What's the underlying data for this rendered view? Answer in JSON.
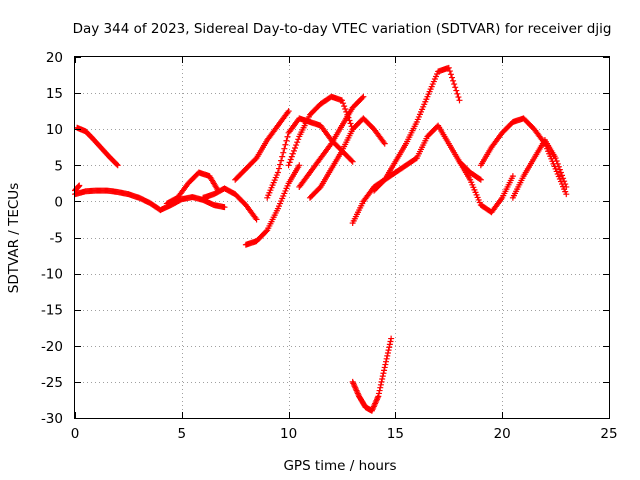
{
  "chart_data": {
    "type": "scatter",
    "title": "Day 344 of 2023, Sidereal Day-to-day VTEC variation (SDTVAR) for receiver djig",
    "xlabel": "GPS time / hours",
    "ylabel": "SDTVAR / TECUs",
    "xlim": [
      0,
      25
    ],
    "ylim": [
      -30,
      20
    ],
    "xticks": [
      0,
      5,
      10,
      15,
      20,
      25
    ],
    "yticks": [
      -30,
      -25,
      -20,
      -15,
      -10,
      -5,
      0,
      5,
      10,
      15,
      20
    ],
    "grid": true,
    "marker": "+",
    "color": "#ff0000",
    "tracks": [
      {
        "x": [
          0,
          0.5,
          1.0,
          1.5,
          2.0,
          2.5,
          3.0,
          3.5,
          4.0,
          4.5,
          5.0,
          5.5,
          6.0,
          6.5,
          7.0
        ],
        "y": [
          1.0,
          1.4,
          1.5,
          1.5,
          1.3,
          1.0,
          0.5,
          -0.2,
          -1.2,
          -0.5,
          0.3,
          0.6,
          0.2,
          -0.5,
          -0.8
        ]
      },
      {
        "x": [
          0.1,
          0.5,
          0.8,
          1.2,
          1.6,
          2.0
        ],
        "y": [
          10.2,
          9.7,
          8.8,
          7.5,
          6.2,
          5.0
        ]
      },
      {
        "x": [
          0,
          0.2
        ],
        "y": [
          1.5,
          2.2
        ]
      },
      {
        "x": [
          4.3,
          4.8,
          5.3,
          5.8,
          6.3,
          6.7
        ],
        "y": [
          -0.3,
          0.5,
          2.5,
          4.0,
          3.5,
          1.5
        ]
      },
      {
        "x": [
          6.0,
          6.5,
          7.0,
          7.5,
          8.0,
          8.5
        ],
        "y": [
          0.5,
          1.0,
          1.8,
          1.0,
          -0.5,
          -2.5
        ]
      },
      {
        "x": [
          8.0,
          8.5,
          9.0,
          9.5,
          10.0,
          10.5
        ],
        "y": [
          -6.0,
          -5.5,
          -4.0,
          -1.0,
          2.5,
          5.0
        ]
      },
      {
        "x": [
          7.5,
          8.0,
          8.5,
          9.0,
          9.5,
          10.0
        ],
        "y": [
          3.0,
          4.5,
          6.0,
          8.5,
          10.5,
          12.5
        ]
      },
      {
        "x": [
          9.0,
          9.5,
          10.0,
          10.5,
          11.0,
          11.5,
          12.0,
          12.5,
          13.0
        ],
        "y": [
          0.5,
          4.0,
          9.5,
          11.5,
          11.0,
          10.5,
          8.5,
          7.0,
          5.5
        ]
      },
      {
        "x": [
          10.0,
          10.5,
          11.0,
          11.5,
          12.0,
          12.5,
          13.0
        ],
        "y": [
          5.0,
          9.0,
          12.0,
          13.5,
          14.5,
          14.0,
          10.0
        ]
      },
      {
        "x": [
          10.5,
          11.0,
          11.5,
          12.0,
          12.5,
          13.0,
          13.5
        ],
        "y": [
          2.0,
          4.0,
          6.0,
          8.0,
          10.5,
          13.0,
          14.5
        ]
      },
      {
        "x": [
          11.0,
          11.5,
          12.0,
          12.5,
          13.0,
          13.5,
          14.0,
          14.5
        ],
        "y": [
          0.5,
          2.0,
          4.5,
          7.0,
          10.0,
          11.5,
          10.0,
          8.0
        ]
      },
      {
        "x": [
          13.0,
          13.5,
          14.0,
          14.5,
          15.0,
          15.5,
          16.0
        ],
        "y": [
          -3.0,
          0.0,
          2.0,
          3.0,
          4.0,
          5.0,
          6.0
        ]
      },
      {
        "x": [
          14.0,
          14.5,
          15.0,
          15.5,
          16.0,
          16.5,
          17.0,
          17.5,
          18.0
        ],
        "y": [
          1.5,
          3.0,
          5.5,
          8.0,
          11.0,
          14.5,
          18.0,
          18.5,
          14.0
        ]
      },
      {
        "x": [
          16.0,
          16.5,
          17.0,
          17.5,
          18.0,
          18.5,
          19.0
        ],
        "y": [
          6.0,
          9.0,
          10.5,
          8.0,
          5.5,
          4.0,
          3.0
        ]
      },
      {
        "x": [
          18.0,
          18.5,
          19.0,
          19.5,
          20.0,
          20.5
        ],
        "y": [
          5.5,
          3.0,
          -0.5,
          -1.5,
          0.5,
          3.5
        ]
      },
      {
        "x": [
          19.0,
          19.5,
          20.0,
          20.5,
          21.0,
          21.5,
          22.0,
          22.5,
          23.0
        ],
        "y": [
          5.0,
          7.5,
          9.5,
          11.0,
          11.5,
          10.0,
          8.0,
          4.5,
          1.0
        ]
      },
      {
        "x": [
          20.5,
          21.0,
          21.5,
          22.0,
          22.5,
          23.0
        ],
        "y": [
          0.5,
          3.5,
          6.0,
          8.5,
          6.0,
          2.0
        ]
      },
      {
        "x": [
          13.0,
          13.3,
          13.6,
          13.9,
          14.2,
          14.5,
          14.8
        ],
        "y": [
          -25.0,
          -27.0,
          -28.5,
          -29.0,
          -27.0,
          -23.0,
          -19.0
        ]
      }
    ]
  }
}
